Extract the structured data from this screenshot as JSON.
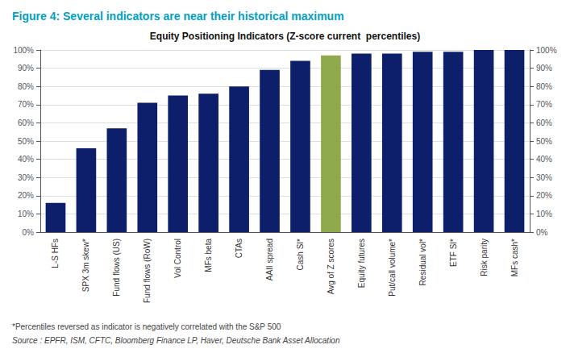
{
  "chart_data": {
    "type": "bar",
    "title": "Equity Positioning Indicators (Z-score current  percentiles)",
    "subtitle": "Figure 4: Several indicators are near their historical maximum",
    "annotations": [
      "*Percentiles reversed as indicator is negatively correlated with the S&P 500",
      "Source : EPFR, ISM, CFTC, Bloomberg Finance LP, Haver, Deutsche Bank Asset Allocation"
    ],
    "categories": [
      "L-S HFs",
      "SPX 3m skew*",
      "Fund flows (US)",
      "Fund flows (RoW)",
      "Vol Control",
      "MFs beta",
      "CTAs",
      "AAII spread",
      "Cash SI*",
      "Avg of Z scores",
      "Equity futures",
      "Put/call volume*",
      "Residual vol*",
      "ETF SI*",
      "Risk parity",
      "MFs cash*"
    ],
    "values": [
      16,
      46,
      57,
      71,
      75,
      76,
      80,
      89,
      94,
      97,
      98,
      98,
      99,
      99,
      100,
      100
    ],
    "colors": [
      "#0d1f6b",
      "#0d1f6b",
      "#0d1f6b",
      "#0d1f6b",
      "#0d1f6b",
      "#0d1f6b",
      "#0d1f6b",
      "#0d1f6b",
      "#0d1f6b",
      "#8faa4b",
      "#0d1f6b",
      "#0d1f6b",
      "#0d1f6b",
      "#0d1f6b",
      "#0d1f6b",
      "#0d1f6b"
    ],
    "ylim": [
      0,
      100
    ],
    "yticks": [
      {
        "value": 0,
        "label": "0%"
      },
      {
        "value": 10,
        "label": "10%"
      },
      {
        "value": 20,
        "label": "20%"
      },
      {
        "value": 30,
        "label": "30%"
      },
      {
        "value": 40,
        "label": "40%"
      },
      {
        "value": 50,
        "label": "50%"
      },
      {
        "value": 60,
        "label": "60%"
      },
      {
        "value": 70,
        "label": "70%"
      },
      {
        "value": 80,
        "label": "80%"
      },
      {
        "value": 90,
        "label": "90%"
      },
      {
        "value": 100,
        "label": "100%"
      }
    ],
    "y2lim": [
      0,
      100
    ],
    "y2ticks": [
      {
        "value": 0,
        "label": "0%"
      },
      {
        "value": 10,
        "label": "10%"
      },
      {
        "value": 20,
        "label": "20%"
      },
      {
        "value": 30,
        "label": "30%"
      },
      {
        "value": 40,
        "label": "40%"
      },
      {
        "value": 50,
        "label": "50%"
      },
      {
        "value": 60,
        "label": "60%"
      },
      {
        "value": 70,
        "label": "70%"
      },
      {
        "value": 80,
        "label": "80%"
      },
      {
        "value": 90,
        "label": "90%"
      },
      {
        "value": 100,
        "label": "100%"
      }
    ],
    "grid": true
  }
}
